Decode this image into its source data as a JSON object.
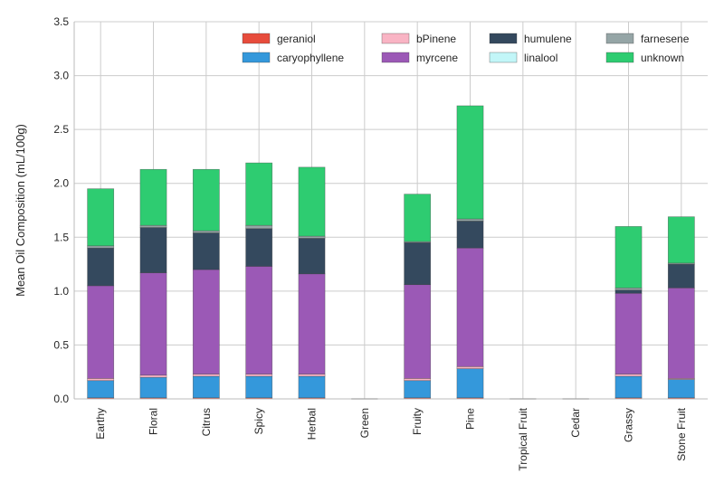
{
  "chart_data": {
    "type": "bar",
    "stacked": true,
    "title": "",
    "xlabel": "",
    "ylabel": "Mean Oil Composition (mL/100g)",
    "ylim": [
      0,
      3.5
    ],
    "yticks": [
      "0.0",
      "0.5",
      "1.0",
      "1.5",
      "2.0",
      "2.5",
      "3.0",
      "3.5"
    ],
    "grid": true,
    "legend_position": "top-right",
    "categories": [
      "Earthy",
      "Floral",
      "Citrus",
      "Spicy",
      "Herbal",
      "Green",
      "Fruity",
      "Pine",
      "Tropical Fruit",
      "Cedar",
      "Grassy",
      "Stone Fruit"
    ],
    "series": [
      {
        "name": "geraniol",
        "color": "#e74c3c",
        "values": [
          0.01,
          0.01,
          0.01,
          0.01,
          0.01,
          0.0,
          0.01,
          0.01,
          0.0,
          0.0,
          0.01,
          0.01
        ]
      },
      {
        "name": "caryophyllene",
        "color": "#3498db",
        "values": [
          0.16,
          0.19,
          0.2,
          0.2,
          0.2,
          0.0,
          0.16,
          0.27,
          0.0,
          0.0,
          0.2,
          0.17
        ]
      },
      {
        "name": "bPinene",
        "color": "#f9b4c4",
        "values": [
          0.02,
          0.02,
          0.02,
          0.02,
          0.02,
          0.0,
          0.02,
          0.02,
          0.0,
          0.0,
          0.02,
          0.01
        ]
      },
      {
        "name": "myrcene",
        "color": "#9b59b6",
        "values": [
          0.86,
          0.95,
          0.97,
          1.0,
          0.93,
          0.0,
          0.87,
          1.1,
          0.0,
          0.0,
          0.75,
          0.84
        ]
      },
      {
        "name": "humulene",
        "color": "#34495e",
        "values": [
          0.35,
          0.42,
          0.34,
          0.35,
          0.33,
          0.0,
          0.39,
          0.25,
          0.0,
          0.0,
          0.03,
          0.22
        ]
      },
      {
        "name": "linalool",
        "color": "#c2f6f8",
        "values": [
          0.0,
          0.0,
          0.0,
          0.0,
          0.0,
          0.0,
          0.0,
          0.0,
          0.0,
          0.0,
          0.0,
          0.0
        ]
      },
      {
        "name": "farnesene",
        "color": "#95a5a6",
        "values": [
          0.02,
          0.02,
          0.02,
          0.03,
          0.02,
          0.0,
          0.01,
          0.02,
          0.0,
          0.0,
          0.02,
          0.01
        ]
      },
      {
        "name": "unknown",
        "color": "#2ecc71",
        "values": [
          0.53,
          0.52,
          0.57,
          0.58,
          0.64,
          0.0,
          0.44,
          1.05,
          0.0,
          0.0,
          0.57,
          0.43
        ]
      }
    ]
  }
}
